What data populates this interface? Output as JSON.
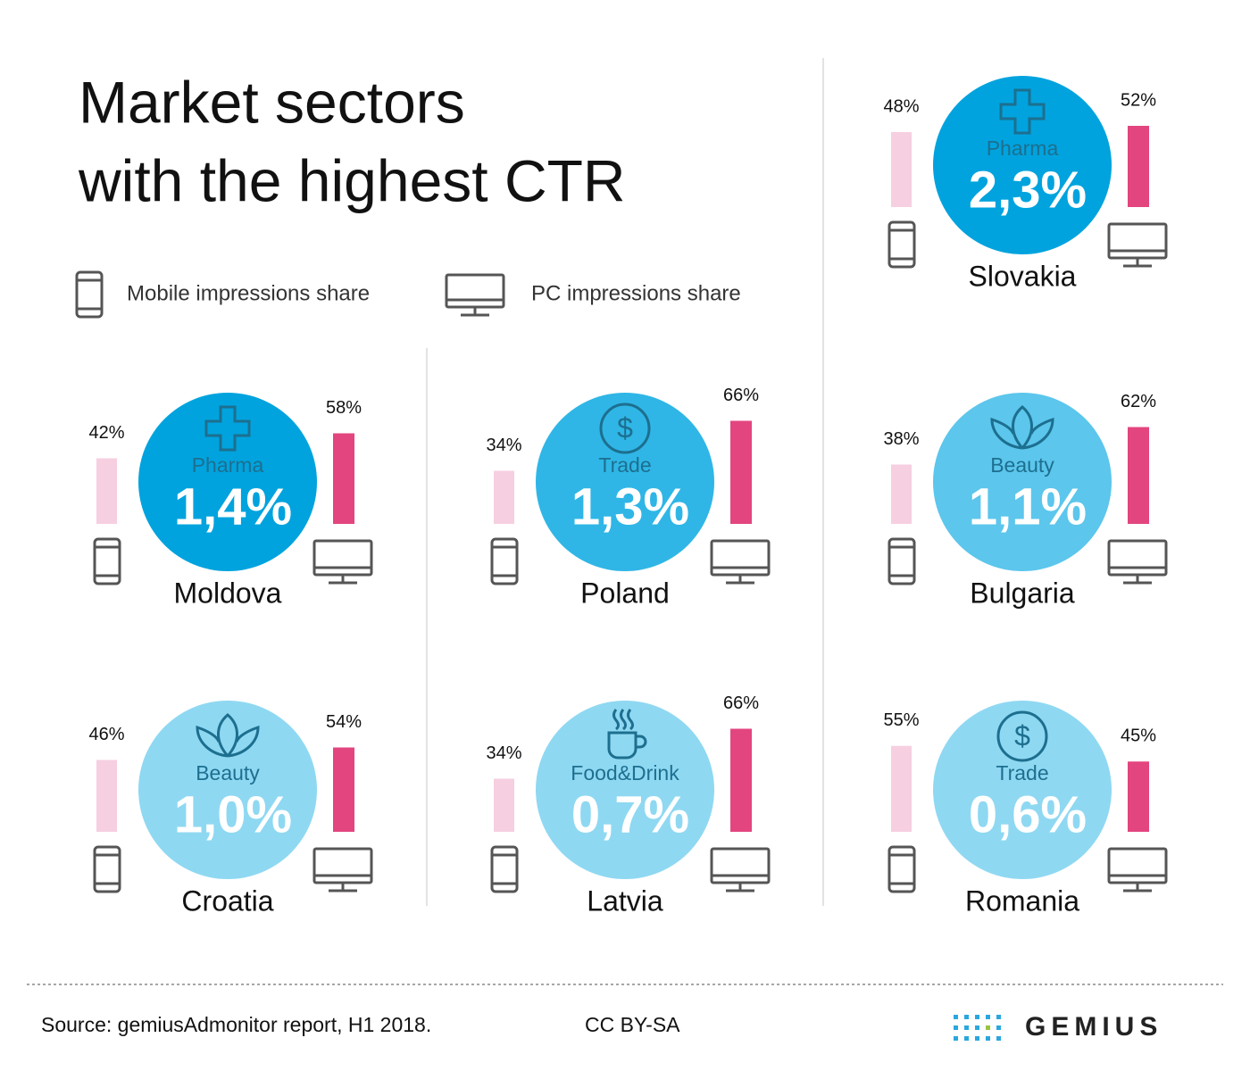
{
  "title": [
    "Market sectors",
    "with the highest CTR"
  ],
  "legend": {
    "mobile": "Mobile impressions share",
    "pc": "PC impressions share"
  },
  "bar_colors": {
    "mobile": "#f6cfe0",
    "pc": "#e3457f"
  },
  "countries": [
    {
      "name": "Slovakia",
      "sector": "Pharma",
      "ctr": {
        "value": 2.3,
        "label": "2,3%"
      },
      "color": "#00a3de",
      "mobile": {
        "value": 48,
        "label": "48%"
      },
      "pc": {
        "value": 52,
        "label": "52%"
      }
    },
    {
      "name": "Moldova",
      "sector": "Pharma",
      "ctr": {
        "value": 1.4,
        "label": "1,4%"
      },
      "color": "#00a3de",
      "mobile": {
        "value": 42,
        "label": "42%"
      },
      "pc": {
        "value": 58,
        "label": "58%"
      }
    },
    {
      "name": "Poland",
      "sector": "Trade",
      "ctr": {
        "value": 1.3,
        "label": "1,3%"
      },
      "color": "#2fb6e6",
      "mobile": {
        "value": 34,
        "label": "34%"
      },
      "pc": {
        "value": 66,
        "label": "66%"
      }
    },
    {
      "name": "Bulgaria",
      "sector": "Beauty",
      "ctr": {
        "value": 1.1,
        "label": "1,1%"
      },
      "color": "#5cc6ec",
      "mobile": {
        "value": 38,
        "label": "38%"
      },
      "pc": {
        "value": 62,
        "label": "62%"
      }
    },
    {
      "name": "Croatia",
      "sector": "Beauty",
      "ctr": {
        "value": 1.0,
        "label": "1,0%"
      },
      "color": "#8fd8f2",
      "mobile": {
        "value": 46,
        "label": "46%"
      },
      "pc": {
        "value": 54,
        "label": "54%"
      }
    },
    {
      "name": "Latvia",
      "sector": "Food&Drink",
      "ctr": {
        "value": 0.7,
        "label": "0,7%"
      },
      "color": "#8fd8f2",
      "mobile": {
        "value": 34,
        "label": "34%"
      },
      "pc": {
        "value": 66,
        "label": "66%"
      }
    },
    {
      "name": "Romania",
      "sector": "Trade",
      "ctr": {
        "value": 0.6,
        "label": "0,6%"
      },
      "color": "#8fd8f2",
      "mobile": {
        "value": 55,
        "label": "55%"
      },
      "pc": {
        "value": 45,
        "label": "45%"
      }
    }
  ],
  "footer": {
    "source": "Source: gemiusAdmonitor report, H1 2018.",
    "license": "CC BY-SA",
    "logo": "GEMIUS"
  }
}
